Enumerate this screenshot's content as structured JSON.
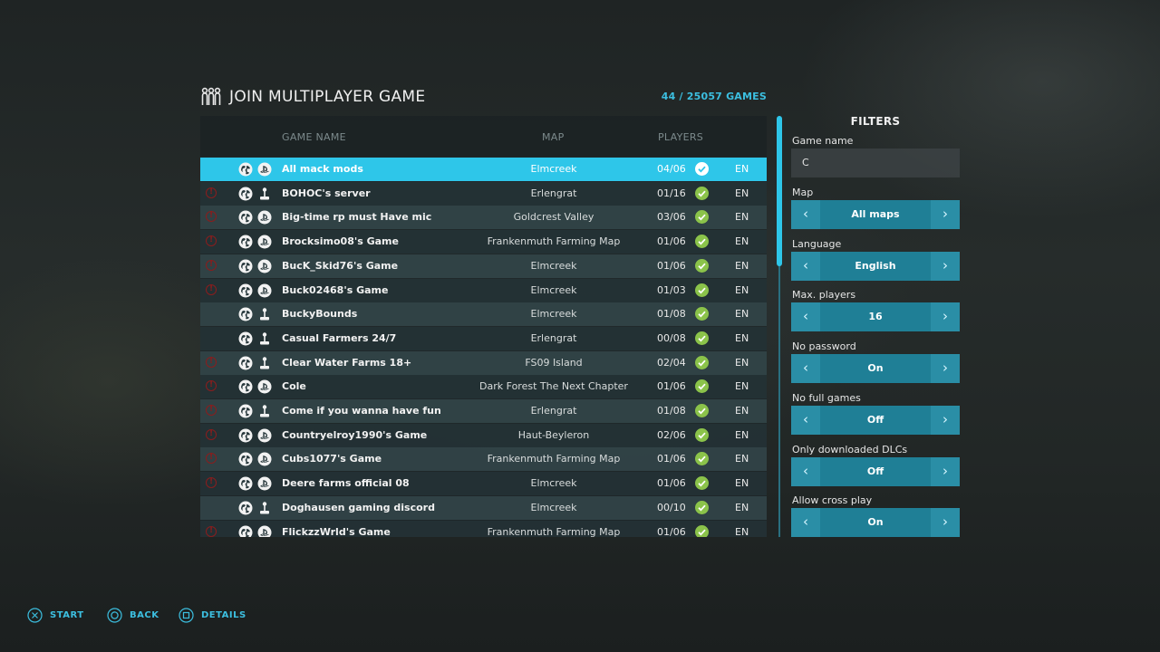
{
  "header": {
    "title": "JOIN MULTIPLAYER GAME",
    "games_count": "44 / 25057 GAMES",
    "title_icon": "players-group-icon"
  },
  "table": {
    "columns": {
      "game_name": "GAME NAME",
      "map": "MAP",
      "players": "PLAYERS"
    },
    "selected_index": 0,
    "rows": [
      {
        "name": "All mack mods",
        "map": "Elmcreek",
        "players": "04/06",
        "lang": "EN",
        "warning": false,
        "platform": "playstation-icon"
      },
      {
        "name": "BOHOC's server",
        "map": "Erlengrat",
        "players": "01/16",
        "lang": "EN",
        "warning": true,
        "platform": "joystick-icon"
      },
      {
        "name": "Big-time rp must Have mic",
        "map": "Goldcrest Valley",
        "players": "03/06",
        "lang": "EN",
        "warning": true,
        "platform": "playstation-icon"
      },
      {
        "name": "Brocksimo08's Game",
        "map": "Frankenmuth Farming Map",
        "players": "01/06",
        "lang": "EN",
        "warning": true,
        "platform": "playstation-icon"
      },
      {
        "name": "BucK_Skid76's Game",
        "map": "Elmcreek",
        "players": "01/06",
        "lang": "EN",
        "warning": true,
        "platform": "playstation-icon"
      },
      {
        "name": "Buck02468's Game",
        "map": "Elmcreek",
        "players": "01/03",
        "lang": "EN",
        "warning": true,
        "platform": "playstation-icon"
      },
      {
        "name": "BuckyBounds",
        "map": "Elmcreek",
        "players": "01/08",
        "lang": "EN",
        "warning": false,
        "platform": "joystick-icon"
      },
      {
        "name": "Casual Farmers 24/7",
        "map": "Erlengrat",
        "players": "00/08",
        "lang": "EN",
        "warning": false,
        "platform": "joystick-icon"
      },
      {
        "name": "Clear Water Farms 18+",
        "map": "FS09 Island",
        "players": "02/04",
        "lang": "EN",
        "warning": true,
        "platform": "joystick-icon"
      },
      {
        "name": "Cole",
        "map": "Dark Forest The Next Chapter",
        "players": "01/06",
        "lang": "EN",
        "warning": true,
        "platform": "playstation-icon"
      },
      {
        "name": "Come if you wanna have fun",
        "map": "Erlengrat",
        "players": "01/08",
        "lang": "EN",
        "warning": true,
        "platform": "joystick-icon"
      },
      {
        "name": "Countryelroy1990's Game",
        "map": "Haut-Beyleron",
        "players": "02/06",
        "lang": "EN",
        "warning": true,
        "platform": "playstation-icon"
      },
      {
        "name": "Cubs1077's Game",
        "map": "Frankenmuth Farming Map",
        "players": "01/06",
        "lang": "EN",
        "warning": true,
        "platform": "playstation-icon"
      },
      {
        "name": "Deere farms official 08",
        "map": "Elmcreek",
        "players": "01/06",
        "lang": "EN",
        "warning": true,
        "platform": "playstation-icon"
      },
      {
        "name": "Doghausen gaming discord",
        "map": "Elmcreek",
        "players": "00/10",
        "lang": "EN",
        "warning": false,
        "platform": "joystick-icon"
      },
      {
        "name": "FlickzzWrld's Game",
        "map": "Frankenmuth Farming Map",
        "players": "01/06",
        "lang": "EN",
        "warning": true,
        "platform": "playstation-icon"
      }
    ]
  },
  "filters": {
    "title": "FILTERS",
    "game_name_label": "Game name",
    "game_name_value": "C",
    "selects": [
      {
        "label": "Map",
        "value": "All maps"
      },
      {
        "label": "Language",
        "value": "English"
      },
      {
        "label": "Max. players",
        "value": "16"
      },
      {
        "label": "No password",
        "value": "On"
      },
      {
        "label": "No full games",
        "value": "Off"
      },
      {
        "label": "Only downloaded DLCs",
        "value": "Off"
      },
      {
        "label": "Allow cross play",
        "value": "On"
      }
    ]
  },
  "footer": {
    "start": "START",
    "back": "BACK",
    "details": "DETAILS"
  },
  "colors": {
    "accent": "#2ec6e9",
    "accent_text": "#3cbfe0",
    "select_bg": "#1f7f96",
    "check": "#8bc34a",
    "warning": "#8a1d1d"
  }
}
